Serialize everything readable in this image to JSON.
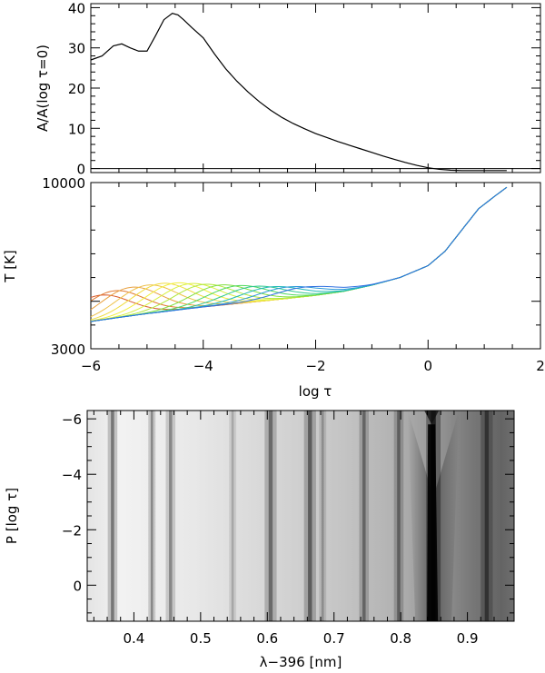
{
  "chart_data": [
    {
      "type": "line",
      "ylabel": "A/A(log τ=0)",
      "xlim": [
        -6,
        2
      ],
      "ylim": [
        -1,
        41
      ],
      "y_ticks": [
        "0",
        "10",
        "20",
        "30",
        "40"
      ],
      "y_tick_values": [
        0,
        10,
        20,
        30,
        40
      ],
      "grid": false,
      "series": [
        {
          "x": [
            -6.0,
            -5.8,
            -5.6,
            -5.45,
            -5.3,
            -5.15,
            -5.0,
            -4.85,
            -4.7,
            -4.55,
            -4.45,
            -4.35,
            -4.2,
            -4.0,
            -3.8,
            -3.6,
            -3.4,
            -3.2,
            -3.0,
            -2.8,
            -2.6,
            -2.4,
            -2.2,
            -2.0,
            -1.8,
            -1.6,
            -1.4,
            -1.2,
            -1.0,
            -0.8,
            -0.6,
            -0.4,
            -0.2,
            0.0,
            0.2,
            0.4,
            0.6,
            0.8,
            1.0,
            1.2,
            1.4
          ],
          "y": [
            27.0,
            28.0,
            30.5,
            31.0,
            30.0,
            29.2,
            29.2,
            33.0,
            37.0,
            38.6,
            38.2,
            37.0,
            35.0,
            32.5,
            28.5,
            24.8,
            21.7,
            19.0,
            16.6,
            14.5,
            12.7,
            11.2,
            9.9,
            8.7,
            7.7,
            6.7,
            5.8,
            4.9,
            4.0,
            3.1,
            2.3,
            1.5,
            0.8,
            0.2,
            -0.2,
            -0.4,
            -0.5,
            -0.5,
            -0.5,
            -0.5,
            -0.5
          ]
        }
      ],
      "baseline": 0
    },
    {
      "type": "line",
      "xlabel": "log τ",
      "ylabel": "T [K]",
      "xlim": [
        -6,
        2
      ],
      "ylim": [
        3000,
        10000
      ],
      "x_ticks": [
        "−6",
        "−4",
        "−2",
        "0",
        "2"
      ],
      "x_tick_values": [
        -6,
        -4,
        -2,
        0,
        2
      ],
      "y_ticks": [
        "3000",
        "10000"
      ],
      "y_tick_values": [
        3000,
        10000
      ],
      "grid": false,
      "bumps": [
        {
          "center": -5.85,
          "amp": 1050,
          "color": "#d85a2a"
        },
        {
          "center": -5.6,
          "amp": 1150,
          "color": "#e07a30"
        },
        {
          "center": -5.3,
          "amp": 1200,
          "color": "#e8a040"
        },
        {
          "center": -5.0,
          "amp": 1200,
          "color": "#eec048"
        },
        {
          "center": -4.75,
          "amp": 1200,
          "color": "#f0dc40"
        },
        {
          "center": -4.5,
          "amp": 1150,
          "color": "#f2f040"
        },
        {
          "center": -4.25,
          "amp": 1050,
          "color": "#d8f040"
        },
        {
          "center": -4.0,
          "amp": 950,
          "color": "#b0e83c"
        },
        {
          "center": -3.7,
          "amp": 850,
          "color": "#80e040"
        },
        {
          "center": -3.4,
          "amp": 750,
          "color": "#50d860"
        },
        {
          "center": -3.1,
          "amp": 650,
          "color": "#30c890"
        },
        {
          "center": -2.8,
          "amp": 560,
          "color": "#20b8b8"
        },
        {
          "center": -2.5,
          "amp": 480,
          "color": "#2898d8"
        },
        {
          "center": -2.2,
          "amp": 400,
          "color": "#3070e0"
        }
      ],
      "base": {
        "x": [
          -6.0,
          -5.5,
          -5.0,
          -4.5,
          -4.0,
          -3.5,
          -3.0,
          -2.5,
          -2.0,
          -1.5,
          -1.0,
          -0.5,
          0.0,
          0.3,
          0.6,
          0.9,
          1.2,
          1.4
        ],
        "y": [
          4150,
          4320,
          4480,
          4620,
          4760,
          4880,
          5000,
          5120,
          5250,
          5420,
          5680,
          6000,
          6500,
          7100,
          8000,
          8900,
          9450,
          9800
        ]
      }
    },
    {
      "type": "heatmap",
      "xlabel": "λ−396 [nm]",
      "ylabel": "P [log τ]",
      "xlim": [
        0.33,
        0.97
      ],
      "ylim": [
        -6.3,
        1.3
      ],
      "x_ticks": [
        "0.4",
        "0.5",
        "0.6",
        "0.7",
        "0.8",
        "0.9"
      ],
      "x_tick_values": [
        0.4,
        0.5,
        0.6,
        0.7,
        0.8,
        0.9
      ],
      "y_ticks": [
        "−6",
        "−4",
        "−2",
        "0"
      ],
      "y_tick_values": [
        -6,
        -4,
        -2,
        0
      ],
      "colormap": "grayscale",
      "dark_lines": [
        {
          "x": 0.368,
          "depth": 0.55,
          "width": 0.004
        },
        {
          "x": 0.427,
          "depth": 0.45,
          "width": 0.003
        },
        {
          "x": 0.455,
          "depth": 0.45,
          "width": 0.004
        },
        {
          "x": 0.548,
          "depth": 0.25,
          "width": 0.003
        },
        {
          "x": 0.605,
          "depth": 0.55,
          "width": 0.005
        },
        {
          "x": 0.664,
          "depth": 0.6,
          "width": 0.005
        },
        {
          "x": 0.683,
          "depth": 0.3,
          "width": 0.003
        },
        {
          "x": 0.745,
          "depth": 0.5,
          "width": 0.004
        },
        {
          "x": 0.797,
          "depth": 0.5,
          "width": 0.004
        },
        {
          "x": 0.849,
          "depth": 0.95,
          "width": 0.006
        },
        {
          "x": 0.929,
          "depth": 0.6,
          "width": 0.005
        }
      ]
    }
  ]
}
